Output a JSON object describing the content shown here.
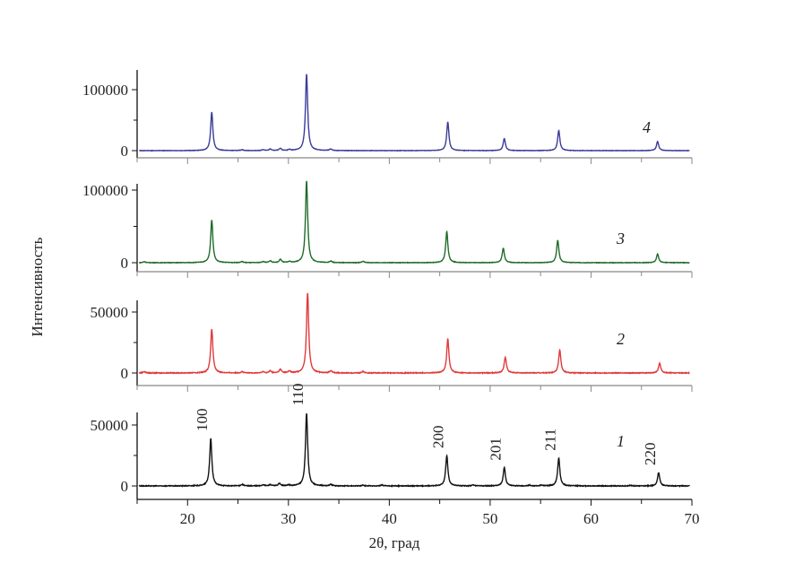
{
  "chart_data": {
    "type": "line",
    "xlabel": "2θ, град",
    "ylabel": "Интенсивность",
    "xlim": [
      15,
      70
    ],
    "x_ticks": [
      20,
      30,
      40,
      50,
      60,
      70
    ],
    "grid": false,
    "panels": [
      {
        "label": "4",
        "color": "#3a3a9a",
        "y_ticks": [
          0,
          100000
        ],
        "ylim": [
          -12000,
          132000
        ],
        "peaks": [
          [
            22.4,
            63000
          ],
          [
            31.8,
            126000
          ],
          [
            45.8,
            47000
          ],
          [
            51.4,
            20000
          ],
          [
            56.8,
            33000
          ],
          [
            66.6,
            15000
          ],
          [
            25.4,
            1500
          ],
          [
            27.5,
            1500
          ],
          [
            28.2,
            2500
          ],
          [
            29.2,
            3500
          ],
          [
            30.1,
            1500
          ],
          [
            34.2,
            2500
          ]
        ]
      },
      {
        "label": "3",
        "color": "#1f6b2a",
        "y_ticks": [
          0,
          100000
        ],
        "ylim": [
          -12000,
          110000
        ],
        "peaks": [
          [
            22.4,
            59000
          ],
          [
            31.8,
            113000
          ],
          [
            45.7,
            43000
          ],
          [
            51.3,
            20000
          ],
          [
            56.7,
            31000
          ],
          [
            66.6,
            12000
          ],
          [
            15.7,
            1500
          ],
          [
            25.4,
            1500
          ],
          [
            27.5,
            1500
          ],
          [
            28.2,
            2500
          ],
          [
            29.2,
            4500
          ],
          [
            30.1,
            1500
          ],
          [
            34.2,
            2000
          ],
          [
            37.4,
            2000
          ]
        ]
      },
      {
        "label": "2",
        "color": "#e03a3a",
        "y_ticks": [
          0,
          50000
        ],
        "ylim": [
          -10000,
          60000
        ],
        "peaks": [
          [
            22.4,
            36000
          ],
          [
            31.9,
            66000
          ],
          [
            45.8,
            28000
          ],
          [
            51.5,
            13000
          ],
          [
            56.9,
            19000
          ],
          [
            66.8,
            8000
          ],
          [
            15.7,
            1200
          ],
          [
            25.4,
            1000
          ],
          [
            27.5,
            1000
          ],
          [
            28.2,
            1800
          ],
          [
            29.2,
            3000
          ],
          [
            30.1,
            1500
          ],
          [
            34.2,
            1800
          ],
          [
            37.4,
            1200
          ]
        ]
      },
      {
        "label": "1",
        "color": "#111111",
        "y_ticks": [
          0,
          50000
        ],
        "ylim": [
          -11000,
          60000
        ],
        "peaks": [
          [
            22.3,
            39000
          ],
          [
            31.8,
            60000
          ],
          [
            45.7,
            25000
          ],
          [
            51.4,
            15000
          ],
          [
            56.8,
            23000
          ],
          [
            66.7,
            11000
          ],
          [
            25.4,
            1200
          ],
          [
            27.5,
            1000
          ],
          [
            28.2,
            1000
          ],
          [
            29.1,
            2000
          ],
          [
            30.0,
            800
          ],
          [
            34.2,
            1200
          ],
          [
            37.4,
            700
          ],
          [
            39.3,
            800
          ],
          [
            48.3,
            700
          ],
          [
            53.9,
            600
          ],
          [
            55.1,
            700
          ],
          [
            63.9,
            500
          ]
        ],
        "annotations": [
          {
            "text": "100",
            "x": 22.3
          },
          {
            "text": "110",
            "x": 31.8
          },
          {
            "text": "200",
            "x": 45.7
          },
          {
            "text": "201",
            "x": 51.4
          },
          {
            "text": "211",
            "x": 56.8
          },
          {
            "text": "220",
            "x": 66.7
          }
        ]
      }
    ]
  }
}
